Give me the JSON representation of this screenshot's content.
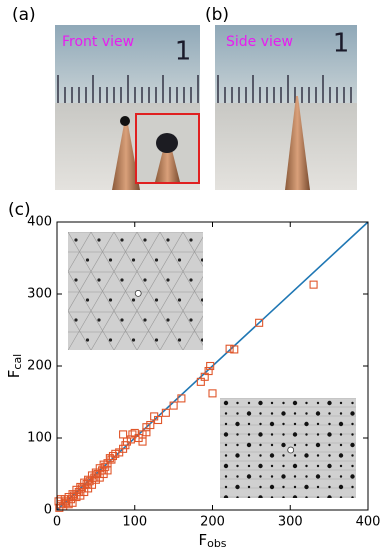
{
  "panels": {
    "a": "(a)",
    "b": "(b)",
    "c": "(c)"
  },
  "photos": {
    "front": {
      "caption": "Front view",
      "ruler_digit": "1"
    },
    "side": {
      "caption": "Side view",
      "ruler_digit": "1"
    }
  },
  "chart_data": {
    "type": "scatter",
    "xlabel": {
      "main": "F",
      "sub": "obs"
    },
    "ylabel": {
      "main": "F",
      "sub": "cal"
    },
    "xlim": [
      0,
      400
    ],
    "ylim": [
      0,
      400
    ],
    "xticks": [
      0,
      100,
      200,
      300,
      400
    ],
    "yticks": [
      0,
      100,
      200,
      300,
      400
    ],
    "color": "#e0562a",
    "reference_line_color": "#1f77b4",
    "x": [
      330,
      260,
      228,
      222,
      200,
      197,
      195,
      190,
      185,
      160,
      150,
      140,
      130,
      125,
      120,
      115,
      115,
      110,
      110,
      105,
      100,
      97,
      95,
      90,
      88,
      85,
      85,
      80,
      75,
      72,
      70,
      68,
      65,
      62,
      60,
      58,
      55,
      52,
      50,
      48,
      45,
      42,
      40,
      38,
      35,
      32,
      30,
      28,
      25,
      22,
      20,
      18,
      15,
      12,
      10,
      8,
      5,
      3,
      2,
      5,
      10,
      15,
      20,
      25,
      30,
      35,
      40,
      45,
      50,
      55,
      60,
      65
    ],
    "values": [
      313,
      260,
      223,
      224,
      162,
      200,
      193,
      185,
      178,
      155,
      145,
      135,
      125,
      130,
      118,
      115,
      108,
      105,
      95,
      100,
      107,
      105,
      98,
      95,
      90,
      105,
      85,
      80,
      78,
      75,
      70,
      72,
      65,
      60,
      63,
      55,
      58,
      50,
      52,
      45,
      48,
      40,
      42,
      36,
      38,
      30,
      32,
      25,
      28,
      20,
      22,
      15,
      18,
      10,
      12,
      5,
      8,
      3,
      12,
      15,
      15,
      8,
      10,
      18,
      20,
      25,
      30,
      35,
      42,
      45,
      50,
      55
    ]
  }
}
